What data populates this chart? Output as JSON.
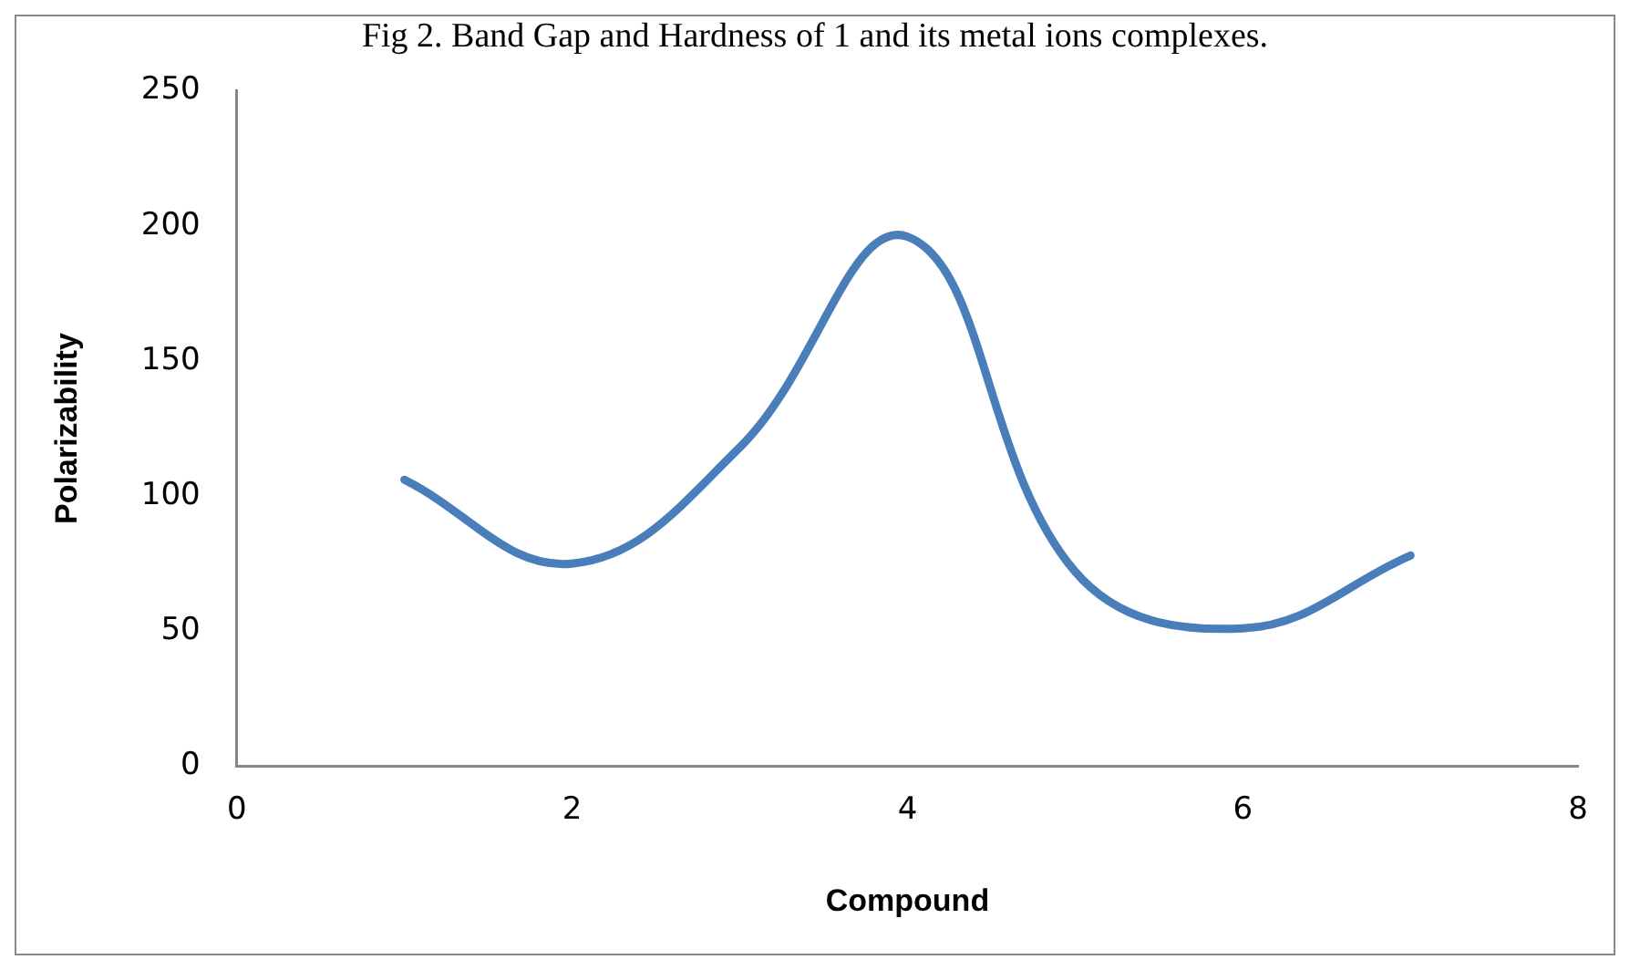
{
  "chart_data": {
    "type": "line",
    "title": "Fig 2. Band Gap and Hardness of 1 and its metal ions complexes.",
    "xlabel": "Compound",
    "ylabel": "Polarizability",
    "x": [
      1,
      2,
      3,
      4,
      5,
      6,
      7
    ],
    "series": [
      {
        "color": "#4a7ebb",
        "values": [
          106,
          75,
          118,
          196,
          72,
          51,
          78
        ]
      }
    ],
    "xlim": [
      0,
      8
    ],
    "xticks": [
      0,
      2,
      4,
      6,
      8
    ],
    "ylim": [
      0,
      250
    ],
    "yticks": [
      0,
      50,
      100,
      150,
      200,
      250
    ],
    "grid": false,
    "legend": false,
    "marker": "none",
    "line_style": "solid"
  }
}
